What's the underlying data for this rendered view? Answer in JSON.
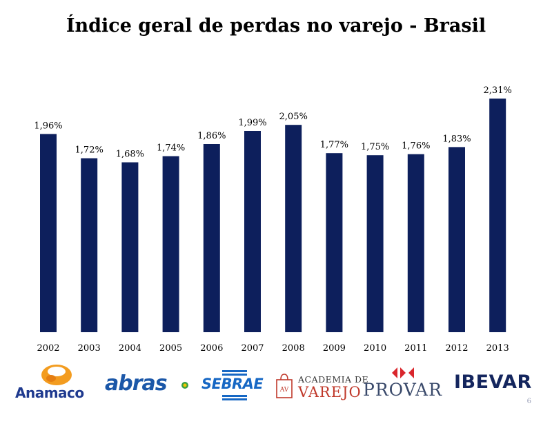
{
  "title": "Índice geral de perdas no varejo - Brasil",
  "page_number": "6",
  "colors": {
    "bar": "#0d1f5c",
    "background": "#ffffff",
    "text": "#000000"
  },
  "logos": {
    "anamaco": "Anamaco",
    "abras": "abras",
    "sebrae": "SEBRAE",
    "academia_line1": "ACADEMIA DE",
    "academia_line2": "VAREJO",
    "academia_mark": "AV",
    "provar": "PROVAR",
    "ibevar": "IBEVAR"
  },
  "chart_data": {
    "type": "bar",
    "title": "Índice geral de perdas no varejo - Brasil",
    "categories": [
      "2002",
      "2003",
      "2004",
      "2005",
      "2006",
      "2007",
      "2008",
      "2009",
      "2010",
      "2011",
      "2012",
      "2013"
    ],
    "values": [
      1.96,
      1.72,
      1.68,
      1.74,
      1.86,
      1.99,
      2.05,
      1.77,
      1.75,
      1.76,
      1.83,
      2.31
    ],
    "data_labels": [
      "1,96%",
      "1,72%",
      "1,68%",
      "1,74%",
      "1,86%",
      "1,99%",
      "2,05%",
      "1,77%",
      "1,75%",
      "1,76%",
      "1,83%",
      "2,31%"
    ],
    "xlabel": "",
    "ylabel": "",
    "ylim": [
      0,
      2.31
    ],
    "grid": false,
    "legend": "none"
  }
}
